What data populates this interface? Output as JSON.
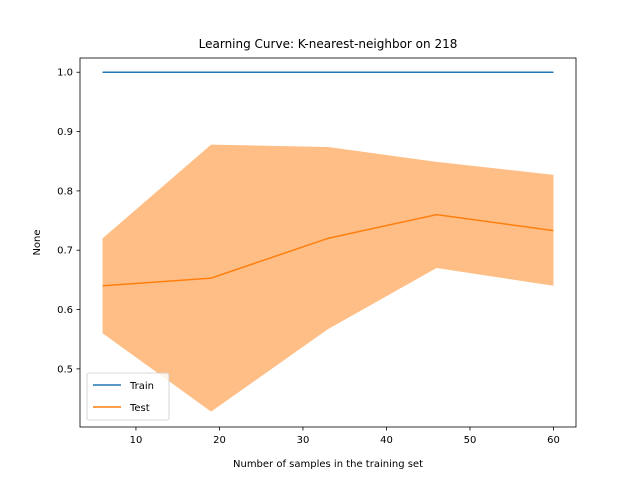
{
  "chart_data": {
    "type": "line",
    "title": "Learning Curve: K-nearest-neighbor on 218",
    "xlabel": "Number of samples in the training set",
    "ylabel": "None",
    "xlim": [
      3.3,
      62.7
    ],
    "ylim": [
      0.402,
      1.024
    ],
    "xticks": [
      10,
      20,
      30,
      40,
      50,
      60
    ],
    "yticks": [
      0.5,
      0.6,
      0.7,
      0.8,
      0.9,
      1.0
    ],
    "x": [
      6,
      19,
      33,
      46,
      60
    ],
    "series": [
      {
        "name": "Train",
        "color": "#1f77b4",
        "values": [
          1.0,
          1.0,
          1.0,
          1.0,
          1.0
        ]
      },
      {
        "name": "Test",
        "color": "#ff7f0e",
        "values": [
          0.64,
          0.653,
          0.72,
          0.76,
          0.733
        ],
        "band_lower": [
          0.56,
          0.428,
          0.567,
          0.67,
          0.64
        ],
        "band_upper": [
          0.72,
          0.878,
          0.874,
          0.849,
          0.827
        ],
        "band_color": "#ffbe86"
      }
    ],
    "legend_position": "lower-left",
    "grid": false
  }
}
